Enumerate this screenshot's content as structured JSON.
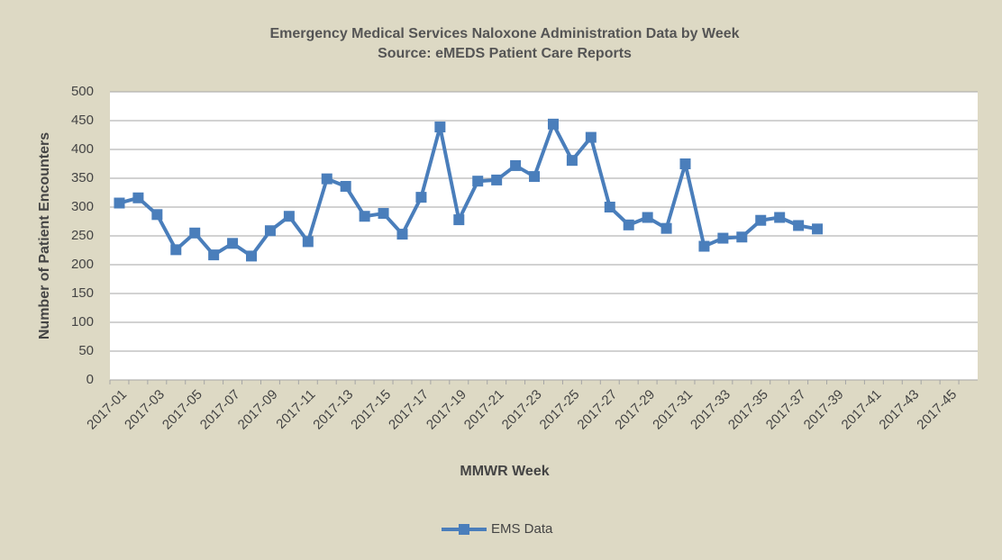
{
  "chart_data": {
    "type": "line",
    "title": "Emergency Medical Services Naloxone Administration Data by Week",
    "subtitle": "Source: eMEDS Patient Care Reports",
    "x_label": "MMWR Week",
    "y_label": "Number of Patient Encounters",
    "categories": [
      "2017-01",
      null,
      "2017-03",
      null,
      "2017-05",
      null,
      "2017-07",
      null,
      "2017-09",
      null,
      "2017-11",
      null,
      "2017-13",
      null,
      "2017-15",
      null,
      "2017-17",
      null,
      "2017-19",
      null,
      "2017-21",
      null,
      "2017-23",
      null,
      "2017-25",
      null,
      "2017-27",
      null,
      "2017-29",
      null,
      "2017-31",
      null,
      "2017-33",
      null,
      "2017-35",
      null,
      "2017-37",
      null,
      "2017-39",
      null,
      "2017-41",
      null,
      "2017-43",
      null,
      "2017-45",
      null
    ],
    "series": [
      {
        "name": "EMS Data",
        "color": "#4a7ebb",
        "values": [
          307,
          316,
          287,
          226,
          255,
          217,
          237,
          215,
          259,
          284,
          240,
          349,
          336,
          284,
          289,
          253,
          317,
          439,
          278,
          345,
          347,
          372,
          353,
          444,
          381,
          421,
          300,
          269,
          282,
          263,
          375,
          232,
          246,
          248,
          277,
          282,
          268,
          262,
          null,
          null,
          null,
          null,
          null,
          null,
          null,
          null
        ]
      }
    ],
    "ylim": [
      0,
      500
    ],
    "yticks": [
      0,
      50,
      100,
      150,
      200,
      250,
      300,
      350,
      400,
      450,
      500
    ],
    "grid": true,
    "legend": "bottom"
  }
}
